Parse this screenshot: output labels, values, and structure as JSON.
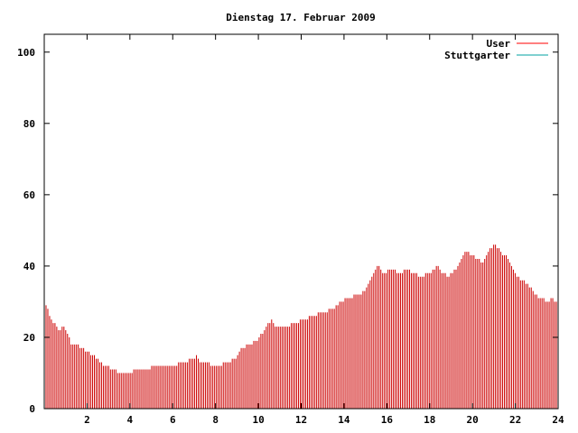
{
  "chart_data": {
    "type": "bar",
    "title": "Dienstag 17. Februar 2009",
    "xlabel": "",
    "ylabel": "",
    "xlim": [
      0,
      24
    ],
    "ylim": [
      0,
      105
    ],
    "xticks": [
      2,
      4,
      6,
      8,
      10,
      12,
      14,
      16,
      18,
      20,
      22,
      24
    ],
    "xtick_labels": [
      "2",
      "4",
      "6",
      "8",
      "10",
      "12",
      "14",
      "16",
      "18",
      "20",
      "22",
      "24"
    ],
    "yticks": [
      0,
      20,
      40,
      60,
      80,
      100
    ],
    "ytick_labels": [
      "0",
      "20",
      "40",
      "60",
      "80",
      "100"
    ],
    "grid": false,
    "legend_position": "top-right",
    "legend": [
      {
        "name": "User",
        "color": "#ff0000"
      },
      {
        "name": "Stuttgarter",
        "color": "#00a0a0"
      }
    ],
    "series": [
      {
        "name": "User",
        "color": "#cc0000",
        "keypoints": [
          [
            0.0,
            30
          ],
          [
            0.15,
            28
          ],
          [
            0.3,
            25
          ],
          [
            0.5,
            24
          ],
          [
            0.7,
            22
          ],
          [
            0.9,
            23
          ],
          [
            1.1,
            21
          ],
          [
            1.25,
            18
          ],
          [
            1.5,
            18
          ],
          [
            1.7,
            17
          ],
          [
            2.0,
            16
          ],
          [
            2.3,
            15
          ],
          [
            2.6,
            13
          ],
          [
            2.9,
            12
          ],
          [
            3.2,
            11
          ],
          [
            3.5,
            10
          ],
          [
            4.0,
            10
          ],
          [
            4.3,
            11
          ],
          [
            4.8,
            11
          ],
          [
            5.2,
            12
          ],
          [
            6.0,
            12
          ],
          [
            6.5,
            13
          ],
          [
            7.0,
            14
          ],
          [
            7.1,
            15
          ],
          [
            7.3,
            13
          ],
          [
            7.6,
            13
          ],
          [
            7.9,
            12
          ],
          [
            8.2,
            12
          ],
          [
            8.5,
            13
          ],
          [
            8.9,
            14
          ],
          [
            9.2,
            17
          ],
          [
            9.6,
            18
          ],
          [
            9.9,
            19
          ],
          [
            10.3,
            22
          ],
          [
            10.6,
            25
          ],
          [
            10.8,
            23
          ],
          [
            11.3,
            23
          ],
          [
            11.7,
            24
          ],
          [
            12.1,
            25
          ],
          [
            12.5,
            26
          ],
          [
            13.0,
            27
          ],
          [
            13.5,
            28
          ],
          [
            13.8,
            30
          ],
          [
            14.2,
            31
          ],
          [
            14.7,
            32
          ],
          [
            15.0,
            33
          ],
          [
            15.3,
            37
          ],
          [
            15.6,
            40
          ],
          [
            15.8,
            38
          ],
          [
            16.2,
            39
          ],
          [
            16.6,
            38
          ],
          [
            17.0,
            39
          ],
          [
            17.2,
            38
          ],
          [
            17.6,
            37
          ],
          [
            18.0,
            38
          ],
          [
            18.4,
            40
          ],
          [
            18.6,
            38
          ],
          [
            18.9,
            37
          ],
          [
            19.2,
            39
          ],
          [
            19.5,
            42
          ],
          [
            19.7,
            44
          ],
          [
            20.0,
            43
          ],
          [
            20.3,
            42
          ],
          [
            20.5,
            41
          ],
          [
            20.8,
            45
          ],
          [
            21.1,
            46
          ],
          [
            21.3,
            44
          ],
          [
            21.5,
            43
          ],
          [
            21.7,
            42
          ],
          [
            22.0,
            38
          ],
          [
            22.3,
            36
          ],
          [
            22.6,
            35
          ],
          [
            22.9,
            32
          ],
          [
            23.2,
            31
          ],
          [
            23.5,
            30
          ],
          [
            23.75,
            31
          ],
          [
            24.0,
            29
          ]
        ]
      },
      {
        "name": "Stuttgarter",
        "color": "#00a0a0",
        "keypoints": []
      }
    ]
  }
}
